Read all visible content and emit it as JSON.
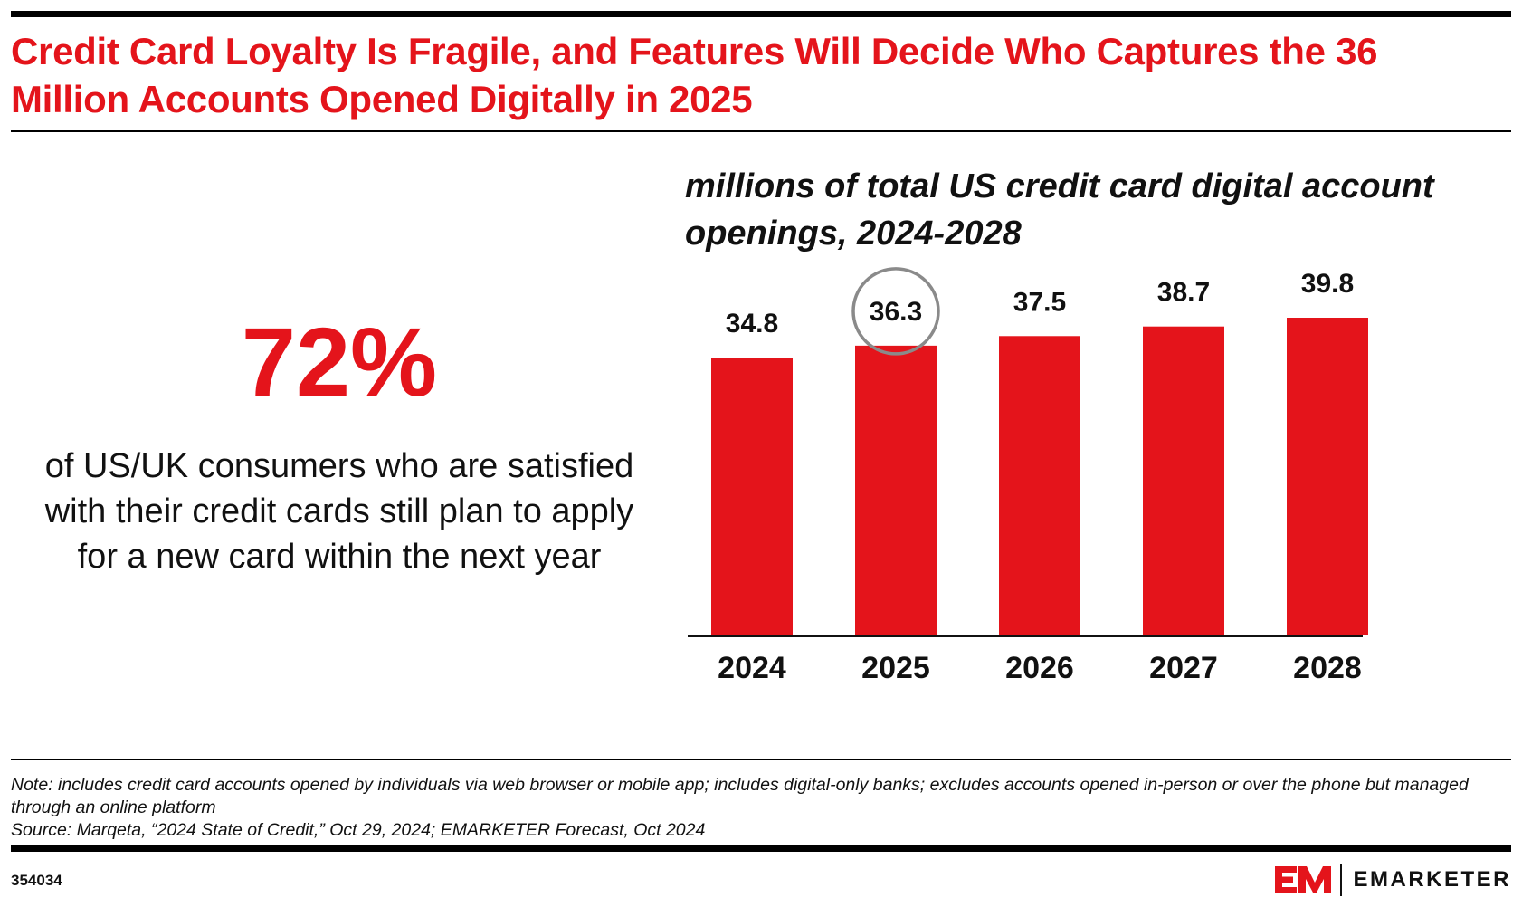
{
  "title": "Credit Card Loyalty Is Fragile, and Features Will Decide Who Captures the 36 Million Accounts Opened Digitally in 2025",
  "stat": {
    "value": "72%",
    "description": "of US/UK consumers who are satisfied with their credit cards still plan to apply for a new card within the next year"
  },
  "chart_data": {
    "type": "bar",
    "title": "millions of total US credit card digital account openings, 2024-2028",
    "categories": [
      "2024",
      "2025",
      "2026",
      "2027",
      "2028"
    ],
    "values": [
      34.8,
      36.3,
      37.5,
      38.7,
      39.8
    ],
    "data_labels": [
      "34.8",
      "36.3",
      "37.5",
      "38.7",
      "39.8"
    ],
    "highlighted_category": "2025",
    "xlabel": "",
    "ylabel": "",
    "ylim": [
      0,
      39.8
    ],
    "grid": false,
    "legend": "none",
    "colors": {
      "bar": "#e4141b",
      "highlight_circle": "#8a8a8a",
      "text": "#111111"
    }
  },
  "footnote": {
    "note": "Note: includes credit card accounts opened by individuals via web browser or mobile app; includes digital-only banks; excludes accounts opened in-person or over the phone but managed through an online platform",
    "source": "Source: Marqeta, “2024 State of Credit,” Oct 29, 2024; EMARKETER Forecast, Oct 2024"
  },
  "chart_id": "354034",
  "brand": {
    "name": "EMARKETER",
    "mark_icon": "em-logo-mark",
    "color": "#e4141b"
  }
}
